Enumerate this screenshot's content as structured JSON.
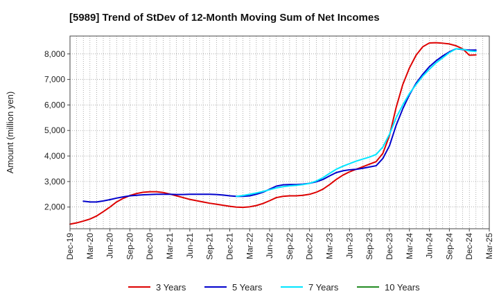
{
  "chart_data": {
    "type": "line",
    "title": "[5989]  Trend of StDev of 12-Month Moving Sum of Net Incomes",
    "xlabel": "",
    "ylabel": "Amount (million yen)",
    "ylim": [
      1150,
      8700
    ],
    "yticks": [
      2000,
      3000,
      4000,
      5000,
      6000,
      7000,
      8000
    ],
    "ytick_labels": [
      "2,000",
      "3,000",
      "4,000",
      "5,000",
      "6,000",
      "7,000",
      "8,000"
    ],
    "xlim": [
      "2019-12",
      "2025-03"
    ],
    "xticks": [
      "2019-12",
      "2020-03",
      "2020-06",
      "2020-09",
      "2020-12",
      "2021-03",
      "2021-06",
      "2021-09",
      "2021-12",
      "2022-03",
      "2022-06",
      "2022-09",
      "2022-12",
      "2023-03",
      "2023-06",
      "2023-09",
      "2023-12",
      "2024-03",
      "2024-06",
      "2024-09",
      "2024-12",
      "2025-03"
    ],
    "xtick_labels": [
      "Dec-19",
      "Mar-20",
      "Jun-20",
      "Sep-20",
      "Dec-20",
      "Mar-21",
      "Jun-21",
      "Sep-21",
      "Dec-21",
      "Mar-22",
      "Jun-22",
      "Sep-22",
      "Dec-22",
      "Mar-23",
      "Jun-23",
      "Sep-23",
      "Dec-23",
      "Mar-24",
      "Jun-24",
      "Sep-24",
      "Dec-24",
      "Mar-25"
    ],
    "grid": true,
    "legend_position": "bottom",
    "series": [
      {
        "name": "3 Years",
        "color": "#dd0000",
        "points": [
          [
            "2019-12",
            1330
          ],
          [
            "2020-01",
            1380
          ],
          [
            "2020-02",
            1450
          ],
          [
            "2020-03",
            1530
          ],
          [
            "2020-04",
            1650
          ],
          [
            "2020-05",
            1820
          ],
          [
            "2020-06",
            2000
          ],
          [
            "2020-07",
            2200
          ],
          [
            "2020-08",
            2340
          ],
          [
            "2020-09",
            2450
          ],
          [
            "2020-10",
            2530
          ],
          [
            "2020-11",
            2580
          ],
          [
            "2020-12",
            2600
          ],
          [
            "2021-01",
            2600
          ],
          [
            "2021-02",
            2570
          ],
          [
            "2021-03",
            2510
          ],
          [
            "2021-04",
            2440
          ],
          [
            "2021-05",
            2370
          ],
          [
            "2021-06",
            2300
          ],
          [
            "2021-07",
            2250
          ],
          [
            "2021-08",
            2200
          ],
          [
            "2021-09",
            2150
          ],
          [
            "2021-10",
            2110
          ],
          [
            "2021-11",
            2070
          ],
          [
            "2021-12",
            2030
          ],
          [
            "2022-01",
            2000
          ],
          [
            "2022-02",
            1990
          ],
          [
            "2022-03",
            2010
          ],
          [
            "2022-04",
            2060
          ],
          [
            "2022-05",
            2140
          ],
          [
            "2022-06",
            2250
          ],
          [
            "2022-07",
            2370
          ],
          [
            "2022-08",
            2420
          ],
          [
            "2022-09",
            2440
          ],
          [
            "2022-10",
            2440
          ],
          [
            "2022-11",
            2460
          ],
          [
            "2022-12",
            2500
          ],
          [
            "2023-01",
            2580
          ],
          [
            "2023-02",
            2700
          ],
          [
            "2023-03",
            2880
          ],
          [
            "2023-04",
            3080
          ],
          [
            "2023-05",
            3250
          ],
          [
            "2023-06",
            3380
          ],
          [
            "2023-07",
            3480
          ],
          [
            "2023-08",
            3580
          ],
          [
            "2023-09",
            3680
          ],
          [
            "2023-10",
            3780
          ],
          [
            "2023-11",
            4100
          ],
          [
            "2023-12",
            4800
          ],
          [
            "2024-01",
            5900
          ],
          [
            "2024-02",
            6800
          ],
          [
            "2024-03",
            7450
          ],
          [
            "2024-04",
            7950
          ],
          [
            "2024-05",
            8280
          ],
          [
            "2024-06",
            8430
          ],
          [
            "2024-07",
            8440
          ],
          [
            "2024-08",
            8420
          ],
          [
            "2024-09",
            8390
          ],
          [
            "2024-10",
            8320
          ],
          [
            "2024-11",
            8200
          ],
          [
            "2024-12",
            7950
          ],
          [
            "2025-01",
            7960
          ]
        ]
      },
      {
        "name": "5 Years",
        "color": "#0000cc",
        "points": [
          [
            "2020-02",
            2230
          ],
          [
            "2020-03",
            2200
          ],
          [
            "2020-04",
            2200
          ],
          [
            "2020-05",
            2240
          ],
          [
            "2020-06",
            2290
          ],
          [
            "2020-07",
            2350
          ],
          [
            "2020-08",
            2400
          ],
          [
            "2020-09",
            2440
          ],
          [
            "2020-10",
            2460
          ],
          [
            "2020-11",
            2480
          ],
          [
            "2020-12",
            2490
          ],
          [
            "2021-01",
            2500
          ],
          [
            "2021-02",
            2500
          ],
          [
            "2021-03",
            2500
          ],
          [
            "2021-04",
            2490
          ],
          [
            "2021-05",
            2490
          ],
          [
            "2021-06",
            2500
          ],
          [
            "2021-07",
            2500
          ],
          [
            "2021-08",
            2500
          ],
          [
            "2021-09",
            2500
          ],
          [
            "2021-10",
            2490
          ],
          [
            "2021-11",
            2470
          ],
          [
            "2021-12",
            2440
          ],
          [
            "2022-01",
            2420
          ],
          [
            "2022-02",
            2420
          ],
          [
            "2022-03",
            2440
          ],
          [
            "2022-04",
            2500
          ],
          [
            "2022-05",
            2580
          ],
          [
            "2022-06",
            2700
          ],
          [
            "2022-07",
            2820
          ],
          [
            "2022-08",
            2870
          ],
          [
            "2022-09",
            2880
          ],
          [
            "2022-10",
            2880
          ],
          [
            "2022-11",
            2900
          ],
          [
            "2022-12",
            2930
          ],
          [
            "2023-01",
            2990
          ],
          [
            "2023-02",
            3080
          ],
          [
            "2023-03",
            3220
          ],
          [
            "2023-04",
            3350
          ],
          [
            "2023-05",
            3420
          ],
          [
            "2023-06",
            3460
          ],
          [
            "2023-07",
            3480
          ],
          [
            "2023-08",
            3520
          ],
          [
            "2023-09",
            3570
          ],
          [
            "2023-10",
            3620
          ],
          [
            "2023-11",
            3900
          ],
          [
            "2023-12",
            4400
          ],
          [
            "2024-01",
            5200
          ],
          [
            "2024-02",
            5850
          ],
          [
            "2024-03",
            6400
          ],
          [
            "2024-04",
            6850
          ],
          [
            "2024-05",
            7200
          ],
          [
            "2024-06",
            7500
          ],
          [
            "2024-07",
            7730
          ],
          [
            "2024-08",
            7920
          ],
          [
            "2024-09",
            8080
          ],
          [
            "2024-10",
            8200
          ],
          [
            "2024-11",
            8170
          ],
          [
            "2024-12",
            8150
          ],
          [
            "2025-01",
            8150
          ]
        ]
      },
      {
        "name": "7 Years",
        "color": "#00e5ff",
        "points": [
          [
            "2022-01",
            2420
          ],
          [
            "2022-02",
            2450
          ],
          [
            "2022-03",
            2500
          ],
          [
            "2022-04",
            2550
          ],
          [
            "2022-05",
            2610
          ],
          [
            "2022-06",
            2680
          ],
          [
            "2022-07",
            2750
          ],
          [
            "2022-08",
            2800
          ],
          [
            "2022-09",
            2830
          ],
          [
            "2022-10",
            2850
          ],
          [
            "2022-11",
            2880
          ],
          [
            "2022-12",
            2930
          ],
          [
            "2023-01",
            3020
          ],
          [
            "2023-02",
            3150
          ],
          [
            "2023-03",
            3320
          ],
          [
            "2023-04",
            3480
          ],
          [
            "2023-05",
            3600
          ],
          [
            "2023-06",
            3700
          ],
          [
            "2023-07",
            3800
          ],
          [
            "2023-08",
            3880
          ],
          [
            "2023-09",
            3960
          ],
          [
            "2023-10",
            4060
          ],
          [
            "2023-11",
            4350
          ],
          [
            "2023-12",
            4850
          ],
          [
            "2024-01",
            5500
          ],
          [
            "2024-02",
            6000
          ],
          [
            "2024-03",
            6450
          ],
          [
            "2024-04",
            6800
          ],
          [
            "2024-05",
            7130
          ],
          [
            "2024-06",
            7400
          ],
          [
            "2024-07",
            7650
          ],
          [
            "2024-08",
            7850
          ],
          [
            "2024-09",
            8050
          ],
          [
            "2024-10",
            8200
          ],
          [
            "2024-11",
            8180
          ],
          [
            "2024-12",
            8120
          ],
          [
            "2025-01",
            8100
          ]
        ]
      },
      {
        "name": "10 Years",
        "color": "#228b22",
        "points": []
      }
    ]
  }
}
